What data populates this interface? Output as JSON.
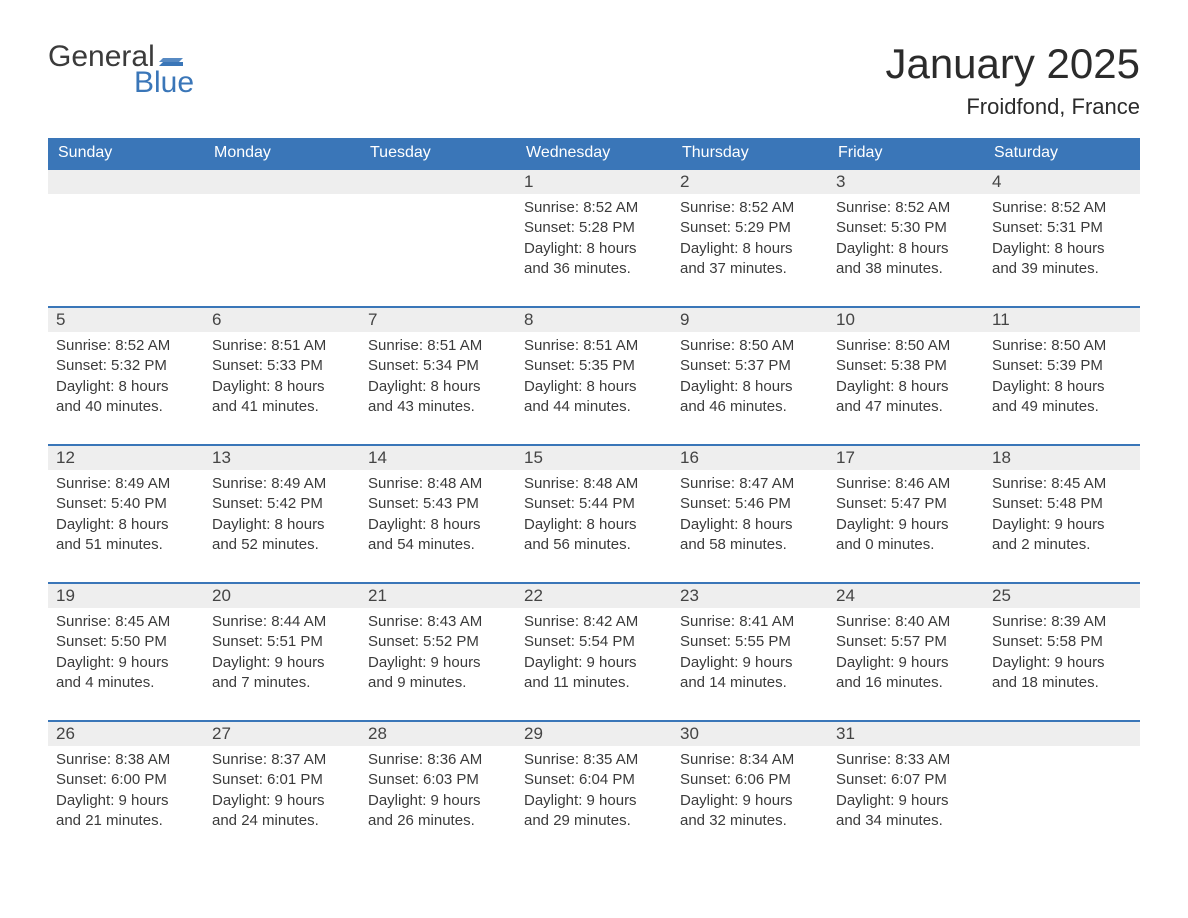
{
  "logo": {
    "general": "General",
    "blue": "Blue",
    "flag_color": "#3a76b8"
  },
  "title": "January 2025",
  "location": "Froidfond, France",
  "colors": {
    "header_bg": "#3a76b8",
    "header_text": "#ffffff",
    "daynum_bg": "#eeeeee",
    "border_top": "#3a76b8",
    "body_text": "#3b3b3b",
    "page_bg": "#ffffff"
  },
  "layout": {
    "type": "calendar-table",
    "columns": 7,
    "rows": 5,
    "week_start": "Sunday"
  },
  "weekdays": [
    "Sunday",
    "Monday",
    "Tuesday",
    "Wednesday",
    "Thursday",
    "Friday",
    "Saturday"
  ],
  "weeks": [
    [
      null,
      null,
      null,
      {
        "n": "1",
        "sunrise": "8:52 AM",
        "sunset": "5:28 PM",
        "dl1": "Daylight: 8 hours",
        "dl2": "and 36 minutes."
      },
      {
        "n": "2",
        "sunrise": "8:52 AM",
        "sunset": "5:29 PM",
        "dl1": "Daylight: 8 hours",
        "dl2": "and 37 minutes."
      },
      {
        "n": "3",
        "sunrise": "8:52 AM",
        "sunset": "5:30 PM",
        "dl1": "Daylight: 8 hours",
        "dl2": "and 38 minutes."
      },
      {
        "n": "4",
        "sunrise": "8:52 AM",
        "sunset": "5:31 PM",
        "dl1": "Daylight: 8 hours",
        "dl2": "and 39 minutes."
      }
    ],
    [
      {
        "n": "5",
        "sunrise": "8:52 AM",
        "sunset": "5:32 PM",
        "dl1": "Daylight: 8 hours",
        "dl2": "and 40 minutes."
      },
      {
        "n": "6",
        "sunrise": "8:51 AM",
        "sunset": "5:33 PM",
        "dl1": "Daylight: 8 hours",
        "dl2": "and 41 minutes."
      },
      {
        "n": "7",
        "sunrise": "8:51 AM",
        "sunset": "5:34 PM",
        "dl1": "Daylight: 8 hours",
        "dl2": "and 43 minutes."
      },
      {
        "n": "8",
        "sunrise": "8:51 AM",
        "sunset": "5:35 PM",
        "dl1": "Daylight: 8 hours",
        "dl2": "and 44 minutes."
      },
      {
        "n": "9",
        "sunrise": "8:50 AM",
        "sunset": "5:37 PM",
        "dl1": "Daylight: 8 hours",
        "dl2": "and 46 minutes."
      },
      {
        "n": "10",
        "sunrise": "8:50 AM",
        "sunset": "5:38 PM",
        "dl1": "Daylight: 8 hours",
        "dl2": "and 47 minutes."
      },
      {
        "n": "11",
        "sunrise": "8:50 AM",
        "sunset": "5:39 PM",
        "dl1": "Daylight: 8 hours",
        "dl2": "and 49 minutes."
      }
    ],
    [
      {
        "n": "12",
        "sunrise": "8:49 AM",
        "sunset": "5:40 PM",
        "dl1": "Daylight: 8 hours",
        "dl2": "and 51 minutes."
      },
      {
        "n": "13",
        "sunrise": "8:49 AM",
        "sunset": "5:42 PM",
        "dl1": "Daylight: 8 hours",
        "dl2": "and 52 minutes."
      },
      {
        "n": "14",
        "sunrise": "8:48 AM",
        "sunset": "5:43 PM",
        "dl1": "Daylight: 8 hours",
        "dl2": "and 54 minutes."
      },
      {
        "n": "15",
        "sunrise": "8:48 AM",
        "sunset": "5:44 PM",
        "dl1": "Daylight: 8 hours",
        "dl2": "and 56 minutes."
      },
      {
        "n": "16",
        "sunrise": "8:47 AM",
        "sunset": "5:46 PM",
        "dl1": "Daylight: 8 hours",
        "dl2": "and 58 minutes."
      },
      {
        "n": "17",
        "sunrise": "8:46 AM",
        "sunset": "5:47 PM",
        "dl1": "Daylight: 9 hours",
        "dl2": "and 0 minutes."
      },
      {
        "n": "18",
        "sunrise": "8:45 AM",
        "sunset": "5:48 PM",
        "dl1": "Daylight: 9 hours",
        "dl2": "and 2 minutes."
      }
    ],
    [
      {
        "n": "19",
        "sunrise": "8:45 AM",
        "sunset": "5:50 PM",
        "dl1": "Daylight: 9 hours",
        "dl2": "and 4 minutes."
      },
      {
        "n": "20",
        "sunrise": "8:44 AM",
        "sunset": "5:51 PM",
        "dl1": "Daylight: 9 hours",
        "dl2": "and 7 minutes."
      },
      {
        "n": "21",
        "sunrise": "8:43 AM",
        "sunset": "5:52 PM",
        "dl1": "Daylight: 9 hours",
        "dl2": "and 9 minutes."
      },
      {
        "n": "22",
        "sunrise": "8:42 AM",
        "sunset": "5:54 PM",
        "dl1": "Daylight: 9 hours",
        "dl2": "and 11 minutes."
      },
      {
        "n": "23",
        "sunrise": "8:41 AM",
        "sunset": "5:55 PM",
        "dl1": "Daylight: 9 hours",
        "dl2": "and 14 minutes."
      },
      {
        "n": "24",
        "sunrise": "8:40 AM",
        "sunset": "5:57 PM",
        "dl1": "Daylight: 9 hours",
        "dl2": "and 16 minutes."
      },
      {
        "n": "25",
        "sunrise": "8:39 AM",
        "sunset": "5:58 PM",
        "dl1": "Daylight: 9 hours",
        "dl2": "and 18 minutes."
      }
    ],
    [
      {
        "n": "26",
        "sunrise": "8:38 AM",
        "sunset": "6:00 PM",
        "dl1": "Daylight: 9 hours",
        "dl2": "and 21 minutes."
      },
      {
        "n": "27",
        "sunrise": "8:37 AM",
        "sunset": "6:01 PM",
        "dl1": "Daylight: 9 hours",
        "dl2": "and 24 minutes."
      },
      {
        "n": "28",
        "sunrise": "8:36 AM",
        "sunset": "6:03 PM",
        "dl1": "Daylight: 9 hours",
        "dl2": "and 26 minutes."
      },
      {
        "n": "29",
        "sunrise": "8:35 AM",
        "sunset": "6:04 PM",
        "dl1": "Daylight: 9 hours",
        "dl2": "and 29 minutes."
      },
      {
        "n": "30",
        "sunrise": "8:34 AM",
        "sunset": "6:06 PM",
        "dl1": "Daylight: 9 hours",
        "dl2": "and 32 minutes."
      },
      {
        "n": "31",
        "sunrise": "8:33 AM",
        "sunset": "6:07 PM",
        "dl1": "Daylight: 9 hours",
        "dl2": "and 34 minutes."
      },
      null
    ]
  ],
  "labels": {
    "sunrise_prefix": "Sunrise: ",
    "sunset_prefix": "Sunset: "
  }
}
